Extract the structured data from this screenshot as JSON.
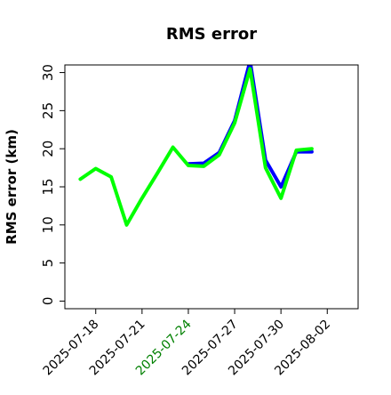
{
  "chart_data": {
    "type": "line",
    "title": "RMS error",
    "xlabel": "",
    "ylabel": "RMS error (km)",
    "x_range": [
      "2025-07-16",
      "2025-08-04"
    ],
    "ylim": [
      -1,
      31
    ],
    "y_ticks": [
      0,
      5,
      10,
      15,
      20,
      25,
      30
    ],
    "x_ticks": [
      {
        "date": "2025-07-18",
        "label": "2025-07-18",
        "color": "#000000"
      },
      {
        "date": "2025-07-21",
        "label": "2025-07-21",
        "color": "#000000"
      },
      {
        "date": "2025-07-24",
        "label": "2025-07-24",
        "color": "#008000"
      },
      {
        "date": "2025-07-27",
        "label": "2025-07-27",
        "color": "#000000"
      },
      {
        "date": "2025-07-30",
        "label": "2025-07-30",
        "color": "#000000"
      },
      {
        "date": "2025-08-02",
        "label": "2025-08-02",
        "color": "#000000"
      }
    ],
    "grid": false,
    "legend": "none",
    "series": [
      {
        "color": "#0000ff",
        "points": [
          {
            "x": "2025-07-24",
            "y": 18.0
          },
          {
            "x": "2025-07-25",
            "y": 18.1
          },
          {
            "x": "2025-07-26",
            "y": 19.5
          },
          {
            "x": "2025-07-27",
            "y": 23.7
          },
          {
            "x": "2025-07-28",
            "y": 31.5
          },
          {
            "x": "2025-07-29",
            "y": 18.5
          },
          {
            "x": "2025-07-30",
            "y": 15.0
          },
          {
            "x": "2025-07-31",
            "y": 19.6
          },
          {
            "x": "2025-08-01",
            "y": 19.6
          }
        ]
      },
      {
        "color": "#00ff00",
        "points": [
          {
            "x": "2025-07-17",
            "y": 16.0
          },
          {
            "x": "2025-07-18",
            "y": 17.4
          },
          {
            "x": "2025-07-19",
            "y": 16.3
          },
          {
            "x": "2025-07-20",
            "y": 10.0
          },
          {
            "x": "2025-07-21",
            "y": 13.5
          },
          {
            "x": "2025-07-22",
            "y": 16.8
          },
          {
            "x": "2025-07-23",
            "y": 20.2
          },
          {
            "x": "2025-07-24",
            "y": 17.8
          },
          {
            "x": "2025-07-25",
            "y": 17.7
          },
          {
            "x": "2025-07-26",
            "y": 19.2
          },
          {
            "x": "2025-07-27",
            "y": 23.4
          },
          {
            "x": "2025-07-28",
            "y": 30.5
          },
          {
            "x": "2025-07-29",
            "y": 17.5
          },
          {
            "x": "2025-07-30",
            "y": 13.5
          },
          {
            "x": "2025-07-31",
            "y": 19.8
          },
          {
            "x": "2025-08-01",
            "y": 20.0
          }
        ]
      }
    ]
  }
}
